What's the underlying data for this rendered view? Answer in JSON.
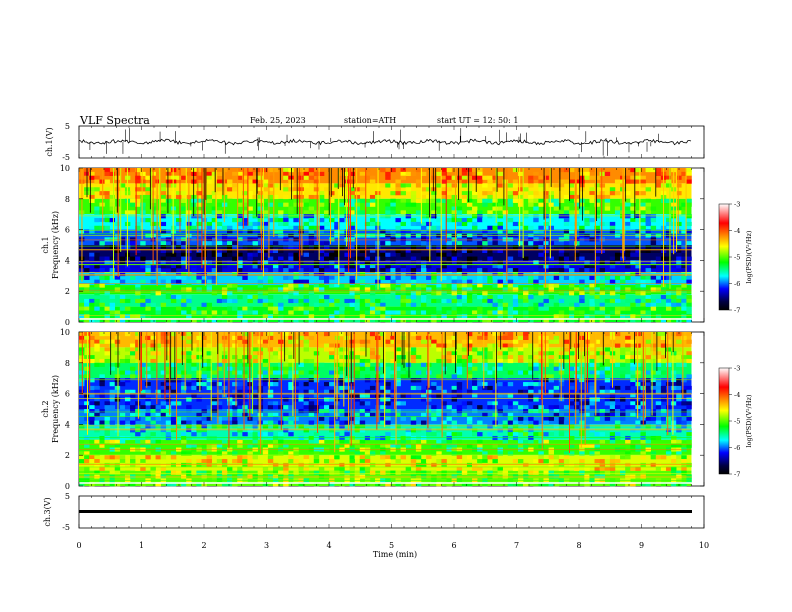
{
  "header": {
    "title": "VLF  Spectra",
    "date": "Feb. 25, 2023",
    "station": "station=ATH",
    "start": "start  UT  =    12: 50: 1"
  },
  "chart_data": [
    {
      "type": "line",
      "ylabel": "ch.1(V)",
      "ylim": [
        -5,
        5
      ],
      "yticks": [
        "5",
        "-5"
      ],
      "xlim": [
        0,
        10
      ],
      "baseline": 0,
      "color": "#000000"
    },
    {
      "type": "heatmap",
      "ylabel_top": "ch.1",
      "ylabel": "Frequency  (kHz)",
      "ylim": [
        0,
        10
      ],
      "yticks": [
        "10",
        "8",
        "6",
        "4",
        "2",
        "0"
      ],
      "xlim": [
        0,
        10
      ],
      "data_end_min": 9.8,
      "colorbar": {
        "label": "log(PSD)(V²/Hz)",
        "range": [
          -7,
          -3
        ],
        "ticks": [
          "-3",
          "-4",
          "-5",
          "-6",
          "-7"
        ],
        "colors": [
          "#ffffff",
          "#ff0000",
          "#ffff00",
          "#00ff00",
          "#00ffff",
          "#0000ff",
          "#000044",
          "#000000"
        ]
      },
      "bands": [
        {
          "f": [
            9.0,
            10.0
          ],
          "level": 0.7
        },
        {
          "f": [
            8.0,
            9.0
          ],
          "level": 0.62
        },
        {
          "f": [
            7.0,
            8.0
          ],
          "level": 0.48
        },
        {
          "f": [
            6.0,
            7.0
          ],
          "level": 0.32
        },
        {
          "f": [
            5.0,
            6.0
          ],
          "level": 0.24
        },
        {
          "f": [
            4.0,
            5.0
          ],
          "level": 0.1
        },
        {
          "f": [
            3.2,
            4.0
          ],
          "level": 0.18
        },
        {
          "f": [
            2.4,
            3.2
          ],
          "level": 0.3
        },
        {
          "f": [
            1.8,
            2.4
          ],
          "level": 0.46
        },
        {
          "f": [
            1.0,
            1.8
          ],
          "level": 0.38
        },
        {
          "f": [
            0.0,
            1.0
          ],
          "level": 0.44
        }
      ]
    },
    {
      "type": "heatmap",
      "ylabel_top": "ch.2",
      "ylabel": "Frequency  (kHz)",
      "ylim": [
        0,
        10
      ],
      "yticks": [
        "10",
        "8",
        "6",
        "4",
        "2",
        "0"
      ],
      "xlim": [
        0,
        10
      ],
      "data_end_min": 9.8,
      "colorbar": {
        "label": "log(PSD)(V²/Hz)",
        "range": [
          -7,
          -3
        ],
        "ticks": [
          "-3",
          "-4",
          "-5",
          "-6",
          "-7"
        ],
        "colors": [
          "#ffffff",
          "#ff0000",
          "#ffff00",
          "#00ff00",
          "#00ffff",
          "#0000ff",
          "#000044",
          "#000000"
        ]
      },
      "bands": [
        {
          "f": [
            9.0,
            10.0
          ],
          "level": 0.66
        },
        {
          "f": [
            8.0,
            9.0
          ],
          "level": 0.56
        },
        {
          "f": [
            7.0,
            8.0
          ],
          "level": 0.4
        },
        {
          "f": [
            5.0,
            7.0
          ],
          "level": 0.22
        },
        {
          "f": [
            4.0,
            5.0
          ],
          "level": 0.26
        },
        {
          "f": [
            3.0,
            4.0
          ],
          "level": 0.36
        },
        {
          "f": [
            2.0,
            3.0
          ],
          "level": 0.48
        },
        {
          "f": [
            1.0,
            2.0
          ],
          "level": 0.58
        },
        {
          "f": [
            0.0,
            1.0
          ],
          "level": 0.5
        }
      ]
    },
    {
      "type": "line",
      "ylabel": "ch.3(V)",
      "ylim": [
        -5,
        5
      ],
      "yticks": [
        "5",
        "-5"
      ],
      "xlim": [
        0,
        10
      ],
      "baseline": 0,
      "color": "#000000"
    }
  ],
  "xaxis": {
    "label": "Time  (min)",
    "ticks": [
      "0",
      "1",
      "2",
      "3",
      "4",
      "5",
      "6",
      "7",
      "8",
      "9",
      "10"
    ]
  }
}
